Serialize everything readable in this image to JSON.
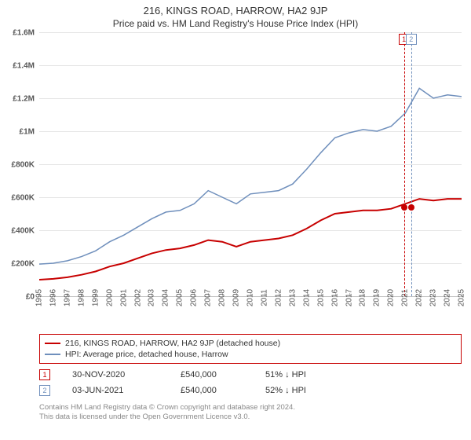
{
  "title": "216, KINGS ROAD, HARROW, HA2 9JP",
  "subtitle": "Price paid vs. HM Land Registry's House Price Index (HPI)",
  "chart": {
    "type": "line",
    "background_color": "#ffffff",
    "grid_color": "#e6e6e6",
    "axis_color": "#c0c0c0",
    "x_years": [
      1995,
      1996,
      1997,
      1998,
      1999,
      2000,
      2001,
      2002,
      2003,
      2004,
      2005,
      2006,
      2007,
      2008,
      2009,
      2010,
      2011,
      2012,
      2013,
      2014,
      2015,
      2016,
      2017,
      2018,
      2019,
      2020,
      2021,
      2022,
      2023,
      2024,
      2025
    ],
    "ylim": [
      0,
      1600000
    ],
    "ytick_step": 200000,
    "ytick_labels": [
      "£0",
      "£200K",
      "£400K",
      "£600K",
      "£800K",
      "£1M",
      "£1.2M",
      "£1.4M",
      "£1.6M"
    ],
    "title_fontsize": 13,
    "subtitle_fontsize": 12,
    "label_fontsize": 10,
    "series": {
      "property": {
        "label": "216, KINGS ROAD, HARROW, HA2 9JP (detached house)",
        "color": "#c70000",
        "line_width": 2,
        "data": [
          [
            1995,
            100000
          ],
          [
            1996,
            105000
          ],
          [
            1997,
            115000
          ],
          [
            1998,
            130000
          ],
          [
            1999,
            150000
          ],
          [
            2000,
            180000
          ],
          [
            2001,
            200000
          ],
          [
            2002,
            230000
          ],
          [
            2003,
            260000
          ],
          [
            2004,
            280000
          ],
          [
            2005,
            290000
          ],
          [
            2006,
            310000
          ],
          [
            2007,
            340000
          ],
          [
            2008,
            330000
          ],
          [
            2009,
            300000
          ],
          [
            2010,
            330000
          ],
          [
            2011,
            340000
          ],
          [
            2012,
            350000
          ],
          [
            2013,
            370000
          ],
          [
            2014,
            410000
          ],
          [
            2015,
            460000
          ],
          [
            2016,
            500000
          ],
          [
            2017,
            510000
          ],
          [
            2018,
            520000
          ],
          [
            2019,
            520000
          ],
          [
            2020,
            530000
          ],
          [
            2021,
            560000
          ],
          [
            2022,
            590000
          ],
          [
            2023,
            580000
          ],
          [
            2024,
            590000
          ],
          [
            2025,
            590000
          ]
        ]
      },
      "hpi": {
        "label": "HPI: Average price, detached house, Harrow",
        "color": "#6f8fbc",
        "line_width": 1.5,
        "data": [
          [
            1995,
            195000
          ],
          [
            1996,
            200000
          ],
          [
            1997,
            215000
          ],
          [
            1998,
            240000
          ],
          [
            1999,
            275000
          ],
          [
            2000,
            330000
          ],
          [
            2001,
            370000
          ],
          [
            2002,
            420000
          ],
          [
            2003,
            470000
          ],
          [
            2004,
            510000
          ],
          [
            2005,
            520000
          ],
          [
            2006,
            560000
          ],
          [
            2007,
            640000
          ],
          [
            2008,
            600000
          ],
          [
            2009,
            560000
          ],
          [
            2010,
            620000
          ],
          [
            2011,
            630000
          ],
          [
            2012,
            640000
          ],
          [
            2013,
            680000
          ],
          [
            2014,
            770000
          ],
          [
            2015,
            870000
          ],
          [
            2016,
            960000
          ],
          [
            2017,
            990000
          ],
          [
            2018,
            1010000
          ],
          [
            2019,
            1000000
          ],
          [
            2020,
            1030000
          ],
          [
            2021,
            1110000
          ],
          [
            2022,
            1260000
          ],
          [
            2023,
            1200000
          ],
          [
            2024,
            1220000
          ],
          [
            2025,
            1210000
          ]
        ]
      }
    },
    "sale_markers": [
      {
        "n": "1",
        "year": 2020.91,
        "value": 540000,
        "border_color": "#c70000"
      },
      {
        "n": "2",
        "year": 2021.42,
        "value": 540000,
        "border_color": "#6f8fbc"
      }
    ]
  },
  "legend": {
    "rows": [
      {
        "color": "#c70000",
        "label": "216, KINGS ROAD, HARROW, HA2 9JP (detached house)"
      },
      {
        "color": "#6f8fbc",
        "label": "HPI: Average price, detached house, Harrow"
      }
    ]
  },
  "sales": [
    {
      "n": "1",
      "border_color": "#c70000",
      "date": "30-NOV-2020",
      "price": "£540,000",
      "delta": "51% ↓ HPI"
    },
    {
      "n": "2",
      "border_color": "#6f8fbc",
      "date": "03-JUN-2021",
      "price": "£540,000",
      "delta": "52% ↓ HPI"
    }
  ],
  "footer": {
    "line1": "Contains HM Land Registry data © Crown copyright and database right 2024.",
    "line2": "This data is licensed under the Open Government Licence v3.0."
  }
}
